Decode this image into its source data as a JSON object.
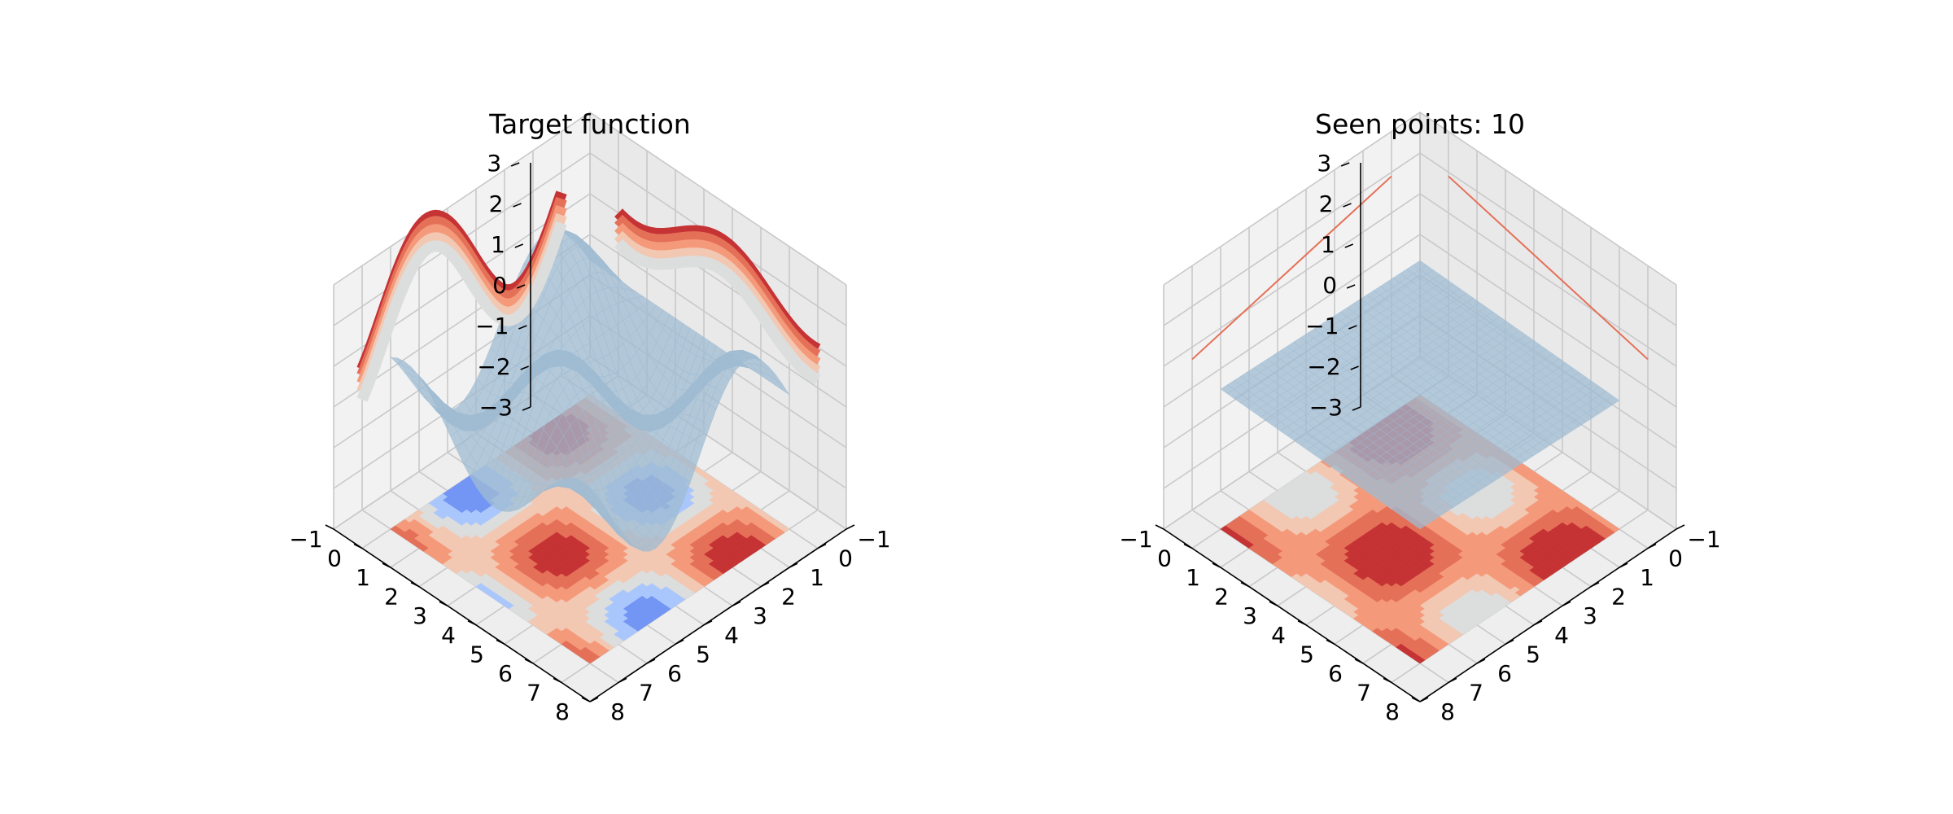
{
  "chart_data": [
    {
      "type": "surface3d",
      "title": "Target function",
      "xlim": [
        -1,
        8
      ],
      "ylim": [
        -1,
        8
      ],
      "zlim": [
        -3,
        3
      ],
      "x_ticks": [
        "−1",
        "0",
        "1",
        "2",
        "3",
        "4",
        "5",
        "6",
        "7",
        "8"
      ],
      "y_ticks": [
        "−1",
        "0",
        "1",
        "2",
        "3",
        "4",
        "5",
        "6",
        "7",
        "8"
      ],
      "z_ticks": [
        "−3",
        "−2",
        "−1",
        "0",
        "1",
        "2",
        "3"
      ],
      "surface": "sin(x) + cos(y) style wave, range about -2 to 2",
      "contour_levels": [
        -2,
        -1.5,
        -1,
        -0.5,
        0,
        0.5,
        1,
        1.5,
        2
      ],
      "cmap": "coolwarm",
      "grid": true
    },
    {
      "type": "surface3d",
      "title": "Seen points: 10",
      "xlim": [
        -1,
        8
      ],
      "ylim": [
        -1,
        8
      ],
      "zlim": [
        -3,
        3
      ],
      "x_ticks": [
        "−1",
        "0",
        "1",
        "2",
        "3",
        "4",
        "5",
        "6",
        "7",
        "8"
      ],
      "y_ticks": [
        "−1",
        "0",
        "1",
        "2",
        "3",
        "4",
        "5",
        "6",
        "7",
        "8"
      ],
      "z_ticks": [
        "−3",
        "−2",
        "−1",
        "0",
        "1",
        "2",
        "3"
      ],
      "surface": "nearly flat plane at z about 0.3",
      "cmap": "coolwarm",
      "grid": true
    }
  ],
  "colors": {
    "pane": "#f2f2f2",
    "pane_side": "#e9e9e9",
    "grid": "#c9c9c9",
    "surface": "#9fbbd2",
    "blue_dark": "#3b4cc0",
    "blue": "#7396f5",
    "blue_light": "#aac7fd",
    "neutral": "#dcdddd",
    "red_light": "#f2c8b3",
    "red_mid": "#f49a7b",
    "red": "#e57058",
    "red_dark": "#c53334"
  }
}
